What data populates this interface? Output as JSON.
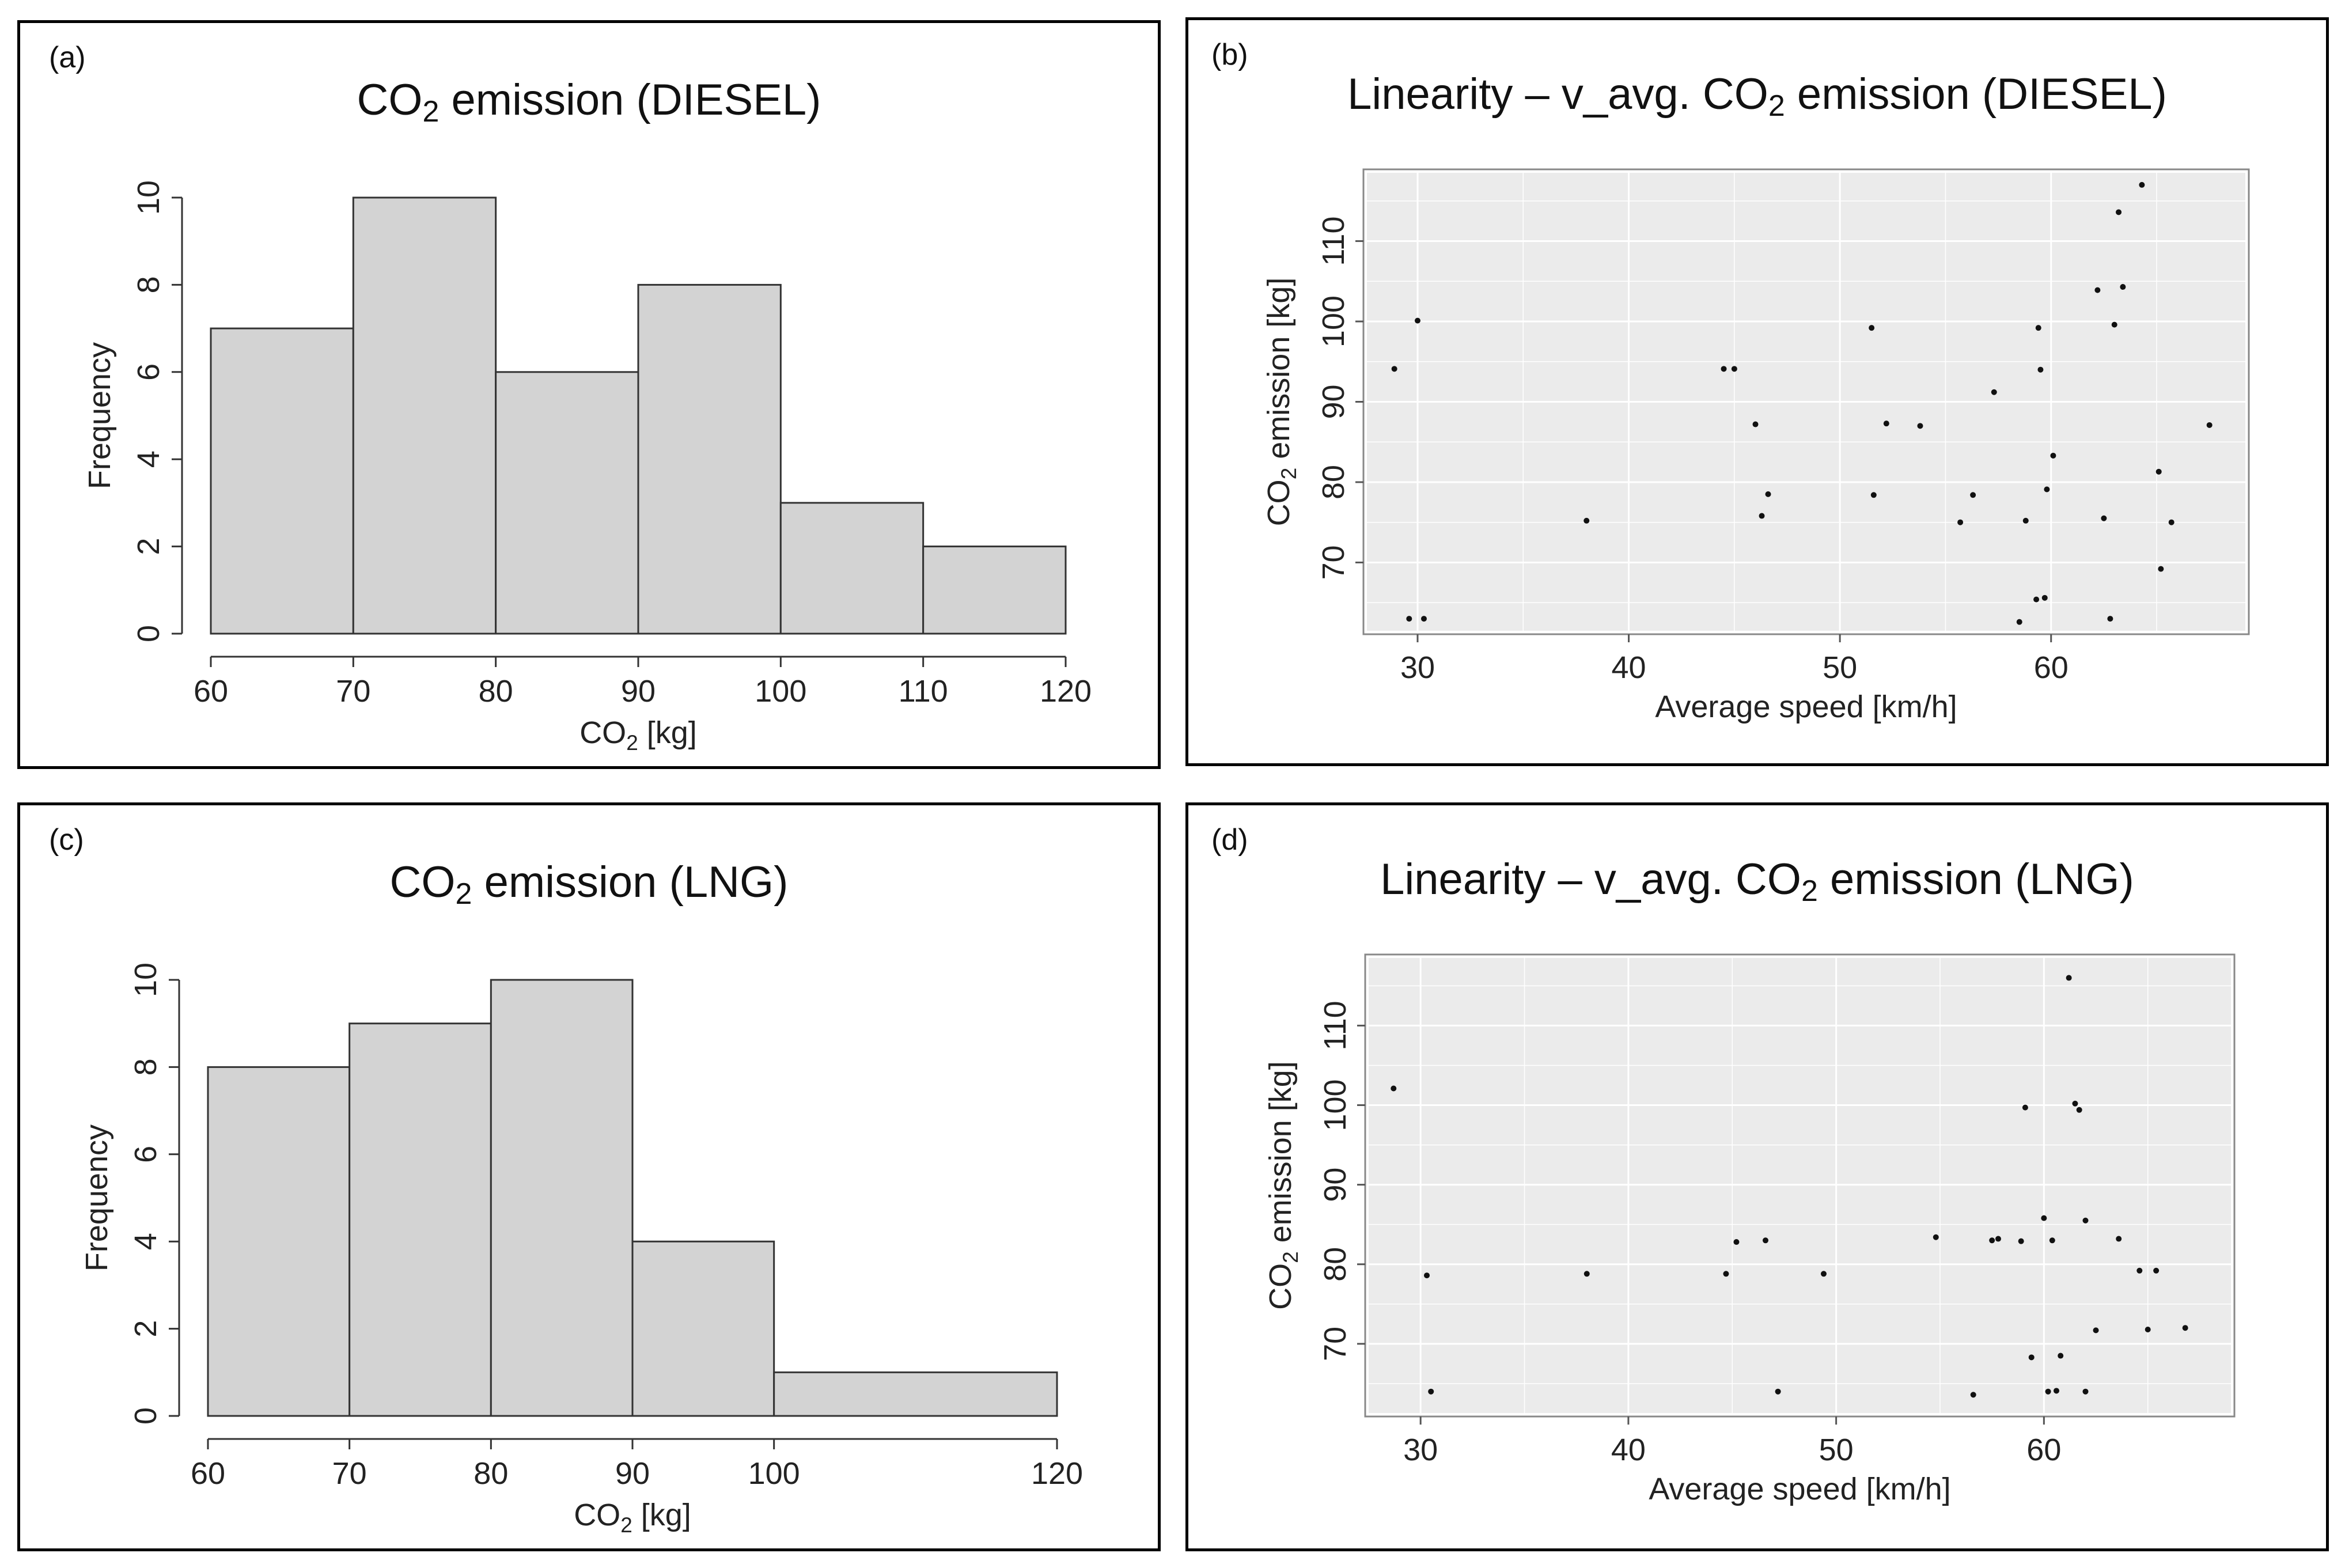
{
  "colors": {
    "bar_fill": "#d3d3d3",
    "bar_stroke": "#333333",
    "scatter_bg": "#ebebeb",
    "grid": "#ffffff",
    "point": "#111111"
  },
  "panels": [
    {
      "label": "(a)",
      "title_main": "CO",
      "title_sub": "2",
      "title_rest": " emission (DIESEL)"
    },
    {
      "label": "(b)",
      "title_main": "Linearity – v_avg. CO",
      "title_sub": "2",
      "title_rest": " emission (DIESEL)"
    },
    {
      "label": "(c)",
      "title_main": "CO",
      "title_sub": "2",
      "title_rest": " emission (LNG)"
    },
    {
      "label": "(d)",
      "title_main": "Linearity – v_avg. CO",
      "title_sub": "2",
      "title_rest": " emission (LNG)"
    }
  ],
  "chart_data": [
    {
      "type": "bar",
      "title": "CO2 emission (DIESEL)",
      "xlabel": "CO2 [kg]",
      "ylabel": "Frequency",
      "bins": [
        [
          60,
          70
        ],
        [
          70,
          80
        ],
        [
          80,
          90
        ],
        [
          90,
          100
        ],
        [
          100,
          110
        ],
        [
          110,
          120
        ]
      ],
      "values": [
        7,
        10,
        6,
        8,
        3,
        2
      ],
      "xticks": [
        60,
        70,
        80,
        90,
        100,
        110,
        120
      ],
      "yticks": [
        0,
        2,
        4,
        6,
        8,
        10
      ],
      "xlim": [
        60,
        120
      ],
      "ylim": [
        0,
        10
      ]
    },
    {
      "type": "scatter",
      "title": "Linearity – v_avg. CO2 emission (DIESEL)",
      "xlabel": "Average speed [km/h]",
      "ylabel": "CO2 emission [kg]",
      "xticks": [
        30,
        40,
        50,
        60
      ],
      "yticks": [
        70,
        80,
        90,
        100,
        110
      ],
      "xlim": [
        27.6,
        69.2
      ],
      "ylim": [
        61.5,
        118.5
      ],
      "x": [
        28.9,
        29.6,
        30.0,
        30.3,
        38.0,
        44.5,
        45.0,
        46.0,
        46.3,
        46.6,
        51.5,
        51.6,
        52.2,
        53.8,
        55.7,
        56.3,
        57.3,
        58.5,
        58.8,
        59.3,
        59.4,
        59.5,
        59.7,
        59.8,
        60.1,
        62.2,
        62.5,
        62.8,
        63.0,
        63.2,
        63.4,
        64.3,
        65.1,
        65.2,
        65.7,
        67.5
      ],
      "y": [
        94.1,
        63.0,
        100.1,
        63.0,
        75.2,
        94.1,
        94.1,
        87.2,
        75.8,
        78.5,
        99.2,
        78.4,
        87.3,
        87.0,
        75.0,
        78.4,
        91.2,
        62.6,
        75.2,
        65.4,
        99.2,
        94.0,
        65.6,
        79.1,
        83.3,
        103.9,
        75.5,
        63.0,
        99.6,
        113.6,
        104.3,
        117.0,
        81.3,
        69.2,
        75.0,
        87.1
      ]
    },
    {
      "type": "bar",
      "title": "CO2 emission (LNG)",
      "xlabel": "CO2 [kg]",
      "ylabel": "Frequency",
      "bins": [
        [
          60,
          70
        ],
        [
          70,
          80
        ],
        [
          80,
          90
        ],
        [
          90,
          100
        ],
        [
          100,
          120
        ]
      ],
      "values": [
        8,
        9,
        10,
        4,
        1
      ],
      "xticks": [
        60,
        70,
        80,
        90,
        100,
        120
      ],
      "yticks": [
        0,
        2,
        4,
        6,
        8,
        10
      ],
      "xlim": [
        60,
        120
      ],
      "ylim": [
        0,
        10
      ]
    },
    {
      "type": "scatter",
      "title": "Linearity – v_avg. CO2 emission (LNG)",
      "xlabel": "Average speed [km/h]",
      "ylabel": "CO2 emission [kg]",
      "xticks": [
        30,
        40,
        50,
        60
      ],
      "yticks": [
        70,
        80,
        90,
        100,
        110
      ],
      "xlim": [
        27.5,
        69.0
      ],
      "ylim": [
        61.3,
        118.5
      ],
      "x": [
        28.7,
        30.3,
        30.5,
        38.0,
        44.7,
        45.2,
        46.6,
        47.2,
        49.4,
        54.8,
        56.6,
        57.5,
        57.8,
        58.9,
        59.1,
        59.4,
        60.0,
        60.2,
        60.4,
        60.6,
        60.8,
        61.2,
        61.5,
        61.7,
        62.0,
        62.0,
        62.5,
        63.6,
        64.6,
        65.0,
        65.4,
        66.8
      ],
      "y": [
        102.1,
        78.6,
        64.0,
        78.8,
        78.8,
        82.8,
        83.0,
        64.0,
        78.8,
        83.4,
        63.6,
        83.0,
        83.2,
        82.9,
        99.7,
        68.3,
        85.8,
        64.0,
        83.0,
        64.1,
        68.5,
        116.0,
        100.2,
        99.4,
        85.5,
        64.0,
        71.7,
        83.2,
        79.2,
        71.8,
        79.2,
        72.0
      ]
    }
  ]
}
